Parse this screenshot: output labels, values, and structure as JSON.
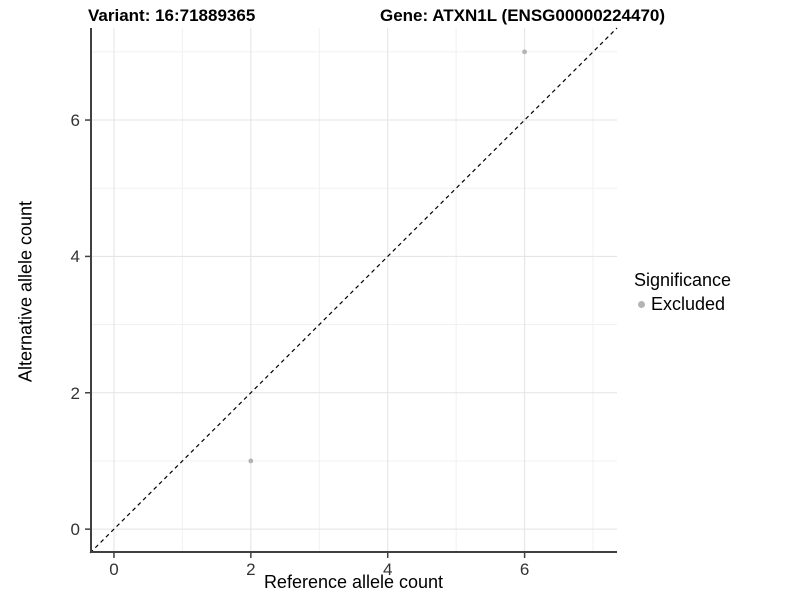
{
  "chart_data": {
    "type": "scatter",
    "title_left": "Variant: 16:71889365",
    "title_right": "Gene: ATXN1L (ENSG00000224470)",
    "xlabel": "Reference allele count",
    "ylabel": "Alternative allele count",
    "xlim": [
      -0.35,
      7.35
    ],
    "ylim": [
      -0.35,
      7.35
    ],
    "x_ticks": [
      0,
      2,
      4,
      6
    ],
    "y_ticks": [
      0,
      2,
      4,
      6
    ],
    "x_minor_gridlines": [
      1,
      3,
      5,
      7
    ],
    "y_minor_gridlines": [
      1,
      3,
      5,
      7
    ],
    "grid": true,
    "legend_position": "right",
    "reference_line": {
      "type": "identity",
      "style": "dashed",
      "color": "#000000"
    },
    "series": [
      {
        "name": "Excluded",
        "color": "#B4B4B4",
        "points": [
          {
            "x": 2,
            "y": 1
          },
          {
            "x": 6,
            "y": 7
          }
        ]
      }
    ],
    "legend": {
      "title": "Significance",
      "items": [
        {
          "label": "Excluded",
          "color": "#B4B4B4"
        }
      ]
    },
    "colors": {
      "grid_major": "#E3E3E3",
      "grid_minor": "#F1F1F1",
      "axis_line": "#404040",
      "tick_text": "#333333"
    }
  }
}
